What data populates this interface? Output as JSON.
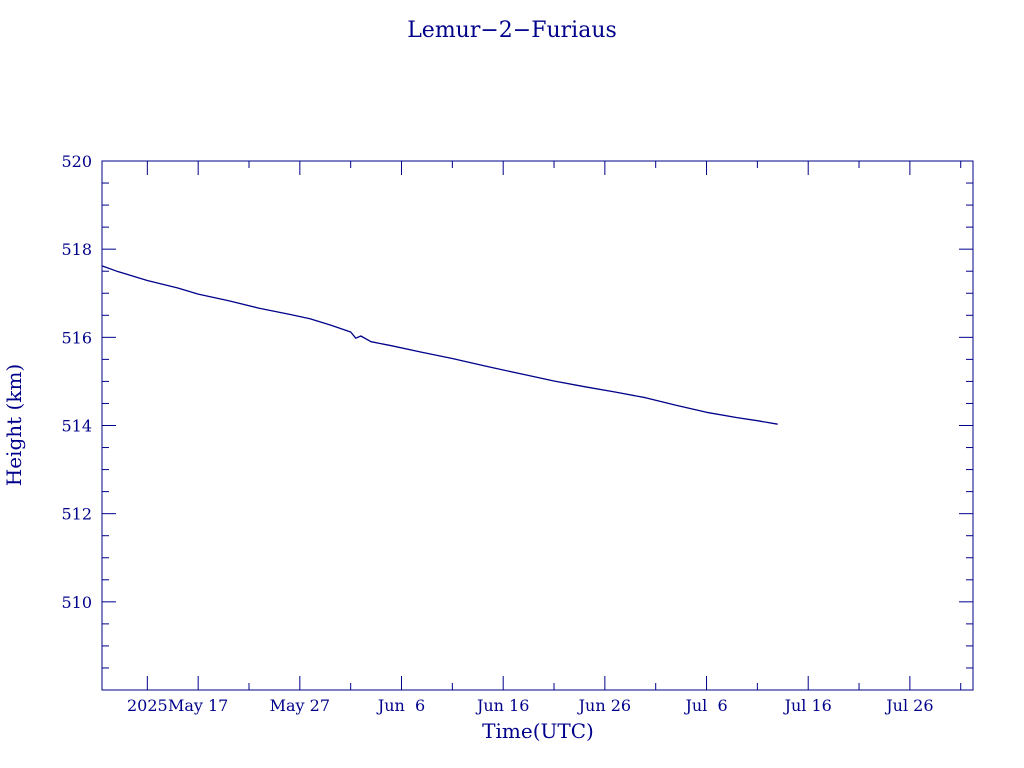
{
  "chart_data": {
    "type": "line",
    "title": "Lemur−2−Furiaus",
    "xlabel": "Time(UTC)",
    "ylabel": "Height (km)",
    "xlim": [
      "2025-05-07T13:00",
      "2025-08-01T05:00"
    ],
    "ylim": [
      508,
      520
    ],
    "y_ticks": [
      510,
      512,
      514,
      516,
      518,
      520
    ],
    "y_minor_step": 0.5,
    "x_ticks": [
      {
        "date": "2025-05-12",
        "label": "2025"
      },
      {
        "date": "2025-05-17",
        "label": "May 17"
      },
      {
        "date": "2025-05-27",
        "label": "May 27"
      },
      {
        "date": "2025-06-06",
        "label": "Jun  6"
      },
      {
        "date": "2025-06-16",
        "label": "Jun 16"
      },
      {
        "date": "2025-06-26",
        "label": "Jun 26"
      },
      {
        "date": "2025-07-06",
        "label": "Jul  6"
      },
      {
        "date": "2025-07-16",
        "label": "Jul 16"
      },
      {
        "date": "2025-07-26",
        "label": "Jul 26"
      }
    ],
    "x_minor_step_days": 5,
    "grid": false,
    "line_color": "#00008b",
    "series": [
      {
        "x": [
          "2025-05-07T13:00",
          "2025-05-09",
          "2025-05-12",
          "2025-05-15",
          "2025-05-17",
          "2025-05-20",
          "2025-05-23",
          "2025-05-26",
          "2025-05-28",
          "2025-05-30",
          "2025-06-01",
          "2025-06-01T12:00",
          "2025-06-02",
          "2025-06-03",
          "2025-06-05",
          "2025-06-08",
          "2025-06-11",
          "2025-06-14",
          "2025-06-15",
          "2025-06-18",
          "2025-06-21",
          "2025-06-24",
          "2025-06-27",
          "2025-06-30",
          "2025-07-03",
          "2025-07-06",
          "2025-07-09",
          "2025-07-11",
          "2025-07-13"
        ],
        "y": [
          517.62,
          517.5,
          517.29,
          517.12,
          516.98,
          516.83,
          516.66,
          516.52,
          516.42,
          516.28,
          516.12,
          515.98,
          516.03,
          515.9,
          515.81,
          515.66,
          515.52,
          515.36,
          515.31,
          515.16,
          515.01,
          514.88,
          514.76,
          514.63,
          514.46,
          514.3,
          514.18,
          514.11,
          514.03
        ]
      }
    ]
  }
}
